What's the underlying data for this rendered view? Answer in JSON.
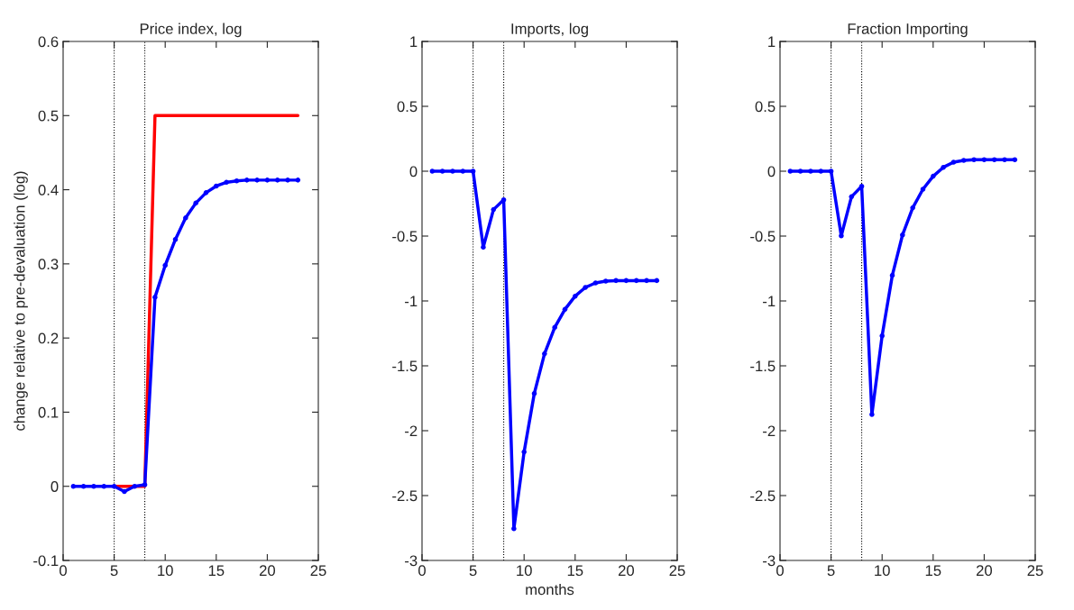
{
  "chart_data": [
    {
      "type": "line",
      "title": "Price index, log",
      "ylabel": "change relative to pre-devaluation (log)",
      "xlim": [
        0,
        25
      ],
      "xticks": [
        0,
        5,
        10,
        15,
        20,
        25
      ],
      "ylim": [
        -0.1,
        0.6
      ],
      "yticks": [
        -0.1,
        0,
        0.1,
        0.2,
        0.3,
        0.4,
        0.5,
        0.6
      ],
      "grid": false,
      "legend": false,
      "marker": "circle",
      "ref_lines": [
        {
          "axis": "x",
          "value": 5,
          "color": "#000000",
          "line_style": "dotted"
        },
        {
          "axis": "x",
          "value": 8,
          "color": "#000000",
          "line_style": "dotted"
        }
      ],
      "series": [
        {
          "color": "#ff0000",
          "marker": "none",
          "x": [
            5,
            6,
            7,
            8,
            9,
            10,
            11,
            12,
            13,
            14,
            15,
            16,
            17,
            18,
            19,
            20,
            21,
            22,
            23
          ],
          "values": [
            0,
            0,
            0,
            0,
            0.5,
            0.5,
            0.5,
            0.5,
            0.5,
            0.5,
            0.5,
            0.5,
            0.5,
            0.5,
            0.5,
            0.5,
            0.5,
            0.5,
            0.5
          ]
        },
        {
          "color": "#0000ff",
          "x": [
            1,
            2,
            3,
            4,
            5,
            6,
            7,
            8,
            9,
            10,
            11,
            12,
            13,
            14,
            15,
            16,
            17,
            18,
            19,
            20,
            21,
            22,
            23
          ],
          "values": [
            0,
            0,
            0,
            0,
            0,
            -0.007,
            0,
            0.002,
            0.255,
            0.298,
            0.333,
            0.362,
            0.382,
            0.396,
            0.405,
            0.41,
            0.412,
            0.413,
            0.413,
            0.413,
            0.413,
            0.413,
            0.413
          ]
        }
      ]
    },
    {
      "type": "line",
      "title": "Imports, log",
      "xlabel": "months",
      "xlim": [
        0,
        25
      ],
      "xticks": [
        0,
        5,
        10,
        15,
        20,
        25
      ],
      "ylim": [
        -3,
        1
      ],
      "yticks": [
        -3,
        -2.5,
        -2,
        -1.5,
        -1,
        -0.5,
        0,
        0.5,
        1
      ],
      "grid": false,
      "legend": false,
      "marker": "circle",
      "ref_lines": [
        {
          "axis": "x",
          "value": 5,
          "color": "#000000",
          "line_style": "dotted"
        },
        {
          "axis": "x",
          "value": 8,
          "color": "#000000",
          "line_style": "dotted"
        }
      ],
      "series": [
        {
          "color": "#0000ff",
          "x": [
            1,
            2,
            3,
            4,
            5,
            6,
            7,
            8,
            9,
            10,
            11,
            12,
            13,
            14,
            15,
            16,
            17,
            18,
            19,
            20,
            21,
            22,
            23
          ],
          "values": [
            0,
            0,
            0,
            0,
            0,
            -0.586,
            -0.296,
            -0.22,
            -2.755,
            -2.164,
            -1.713,
            -1.407,
            -1.204,
            -1.065,
            -0.963,
            -0.896,
            -0.861,
            -0.847,
            -0.843,
            -0.843,
            -0.843,
            -0.843,
            -0.843
          ]
        }
      ]
    },
    {
      "type": "line",
      "title": "Fraction Importing",
      "xlim": [
        0,
        25
      ],
      "xticks": [
        0,
        5,
        10,
        15,
        20,
        25
      ],
      "ylim": [
        -3,
        1
      ],
      "yticks": [
        -3,
        -2.5,
        -2,
        -1.5,
        -1,
        -0.5,
        0,
        0.5,
        1
      ],
      "grid": false,
      "legend": false,
      "marker": "circle",
      "ref_lines": [
        {
          "axis": "x",
          "value": 5,
          "color": "#000000",
          "line_style": "dotted"
        },
        {
          "axis": "x",
          "value": 8,
          "color": "#000000",
          "line_style": "dotted"
        }
      ],
      "series": [
        {
          "color": "#0000ff",
          "x": [
            1,
            2,
            3,
            4,
            5,
            6,
            7,
            8,
            9,
            10,
            11,
            12,
            13,
            14,
            15,
            16,
            17,
            18,
            19,
            20,
            21,
            22,
            23
          ],
          "values": [
            0,
            0,
            0,
            0,
            0,
            -0.498,
            -0.197,
            -0.116,
            -1.875,
            -1.269,
            -0.803,
            -0.491,
            -0.282,
            -0.139,
            -0.039,
            0.03,
            0.069,
            0.083,
            0.088,
            0.088,
            0.088,
            0.088,
            0.088
          ]
        }
      ]
    }
  ]
}
